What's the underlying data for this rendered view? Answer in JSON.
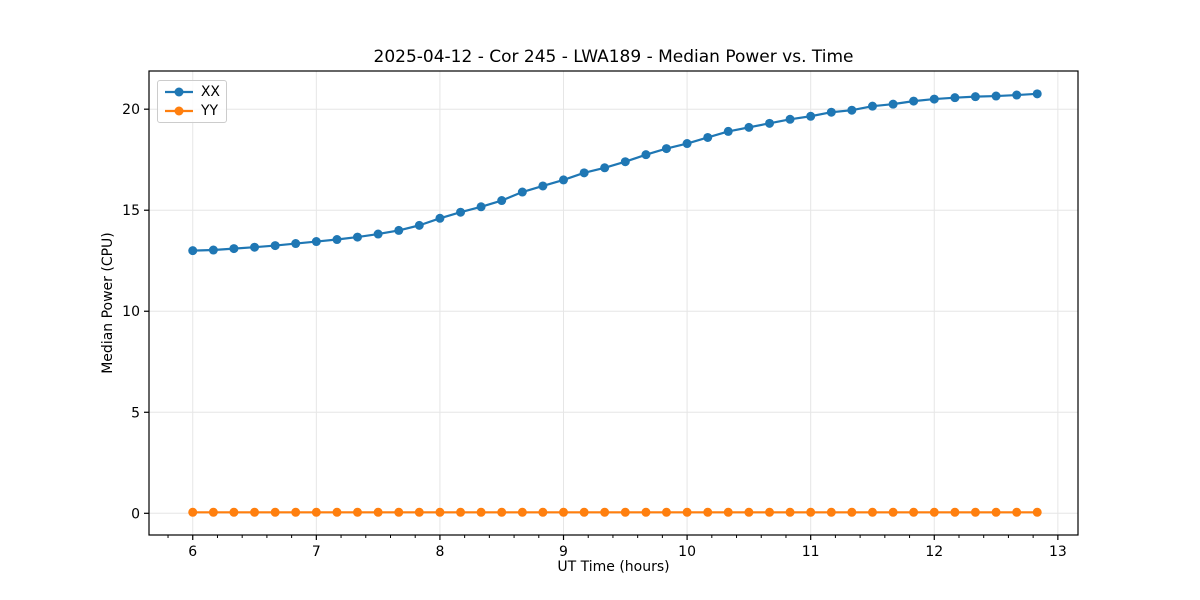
{
  "figure": {
    "title": "2025-04-12 - Cor 245 - LWA189 - Median Power vs. Time",
    "xlabel": "UT Time (hours)",
    "ylabel": "Median Power (CPU)"
  },
  "chart_data": {
    "type": "line",
    "title": "2025-04-12 - Cor 245 - LWA189 - Median Power vs. Time",
    "xlabel": "UT Time (hours)",
    "ylabel": "Median Power (CPU)",
    "x": [
      6.0,
      6.167,
      6.333,
      6.5,
      6.667,
      6.833,
      7.0,
      7.167,
      7.333,
      7.5,
      7.667,
      7.833,
      8.0,
      8.167,
      8.333,
      8.5,
      8.667,
      8.833,
      9.0,
      9.167,
      9.333,
      9.5,
      9.667,
      9.833,
      10.0,
      10.167,
      10.333,
      10.5,
      10.667,
      10.833,
      11.0,
      11.167,
      11.333,
      11.5,
      11.667,
      11.833,
      12.0,
      12.167,
      12.333,
      12.5,
      12.667,
      12.833
    ],
    "series": [
      {
        "name": "XX",
        "color": "#1f77b4",
        "values": [
          13.0,
          13.03,
          13.1,
          13.17,
          13.25,
          13.35,
          13.45,
          13.55,
          13.67,
          13.82,
          14.0,
          14.25,
          14.6,
          14.9,
          15.17,
          15.48,
          15.9,
          16.2,
          16.5,
          16.85,
          17.1,
          17.4,
          17.75,
          18.05,
          18.3,
          18.6,
          18.9,
          19.1,
          19.3,
          19.5,
          19.65,
          19.85,
          19.95,
          20.15,
          20.25,
          20.4,
          20.5,
          20.57,
          20.62,
          20.65,
          20.7,
          20.76
        ]
      },
      {
        "name": "YY",
        "color": "#ff7f0e",
        "values": [
          0.05,
          0.05,
          0.05,
          0.05,
          0.05,
          0.05,
          0.05,
          0.05,
          0.05,
          0.05,
          0.05,
          0.05,
          0.05,
          0.05,
          0.05,
          0.05,
          0.05,
          0.05,
          0.05,
          0.05,
          0.05,
          0.05,
          0.05,
          0.05,
          0.05,
          0.05,
          0.05,
          0.05,
          0.05,
          0.05,
          0.05,
          0.05,
          0.05,
          0.05,
          0.05,
          0.05,
          0.05,
          0.05,
          0.05,
          0.05,
          0.05,
          0.05
        ]
      }
    ],
    "xlim": [
      5.646,
      13.163
    ],
    "ylim": [
      -1.074,
      21.89
    ],
    "x_ticks": [
      6,
      7,
      8,
      9,
      10,
      11,
      12,
      13
    ],
    "x_minor_tick_step": 0.2,
    "y_ticks": [
      0,
      5,
      10,
      15,
      20
    ],
    "grid": "major",
    "grid_color": "#e6e6e6",
    "spine_color": "#000000",
    "legend_position": "upper left",
    "marker": "o"
  }
}
